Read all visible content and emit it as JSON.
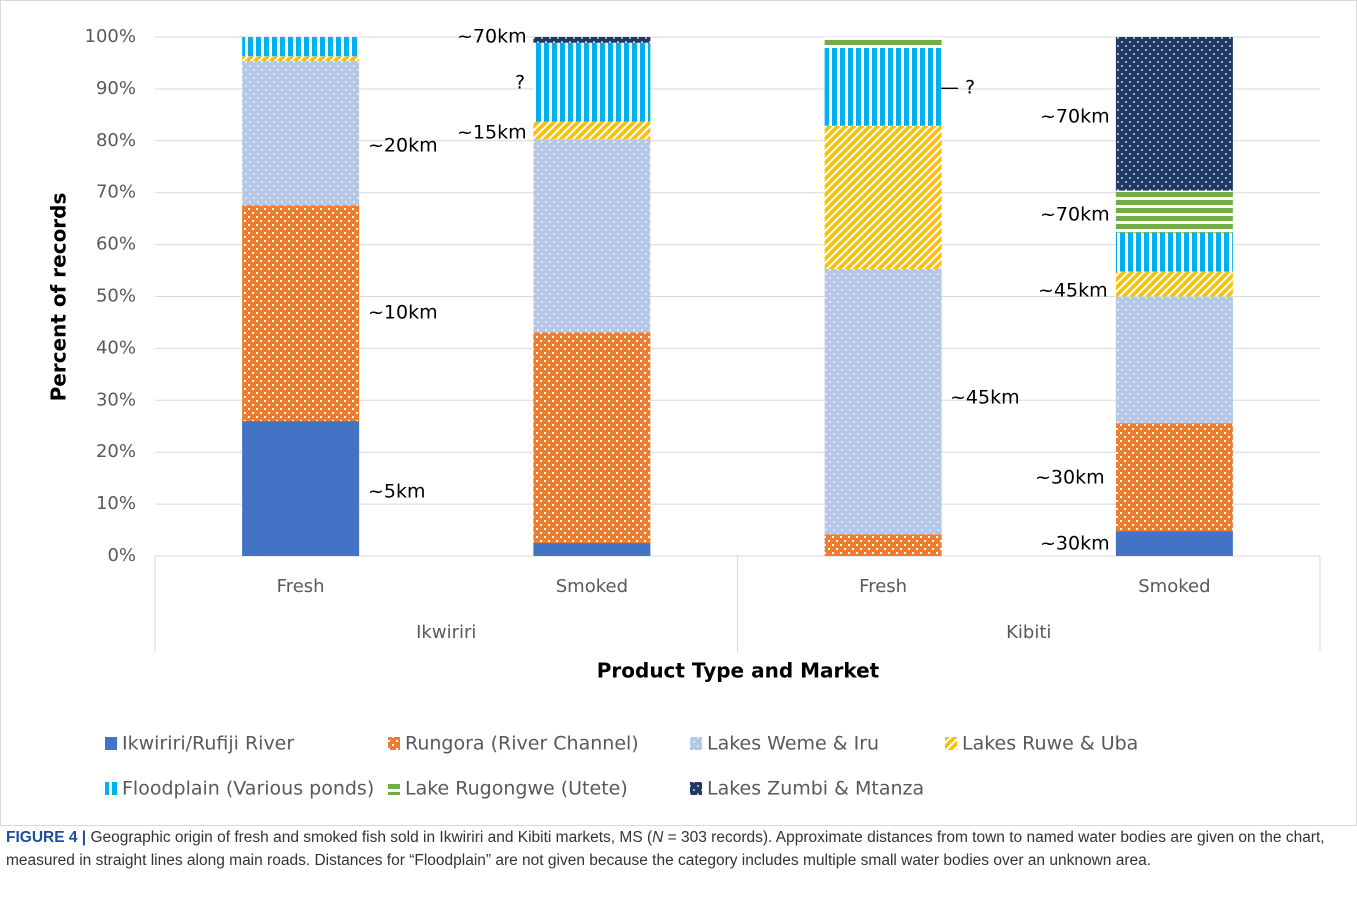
{
  "chart_data": {
    "type": "stacked_bar",
    "categories": [
      "Fresh",
      "Smoked",
      "Fresh",
      "Smoked"
    ],
    "groups": [
      "Ikwiriri",
      "Kibiti"
    ],
    "xlabel": "Product Type and Market",
    "ylabel": "Percent of records",
    "ylim": [
      0,
      100
    ],
    "yticks": [
      {
        "value": 0,
        "label": "0%"
      },
      {
        "value": 10,
        "label": "10%"
      },
      {
        "value": 20,
        "label": "20%"
      },
      {
        "value": 30,
        "label": "30%"
      },
      {
        "value": 40,
        "label": "40%"
      },
      {
        "value": 50,
        "label": "50%"
      },
      {
        "value": 60,
        "label": "60%"
      },
      {
        "value": 70,
        "label": "70%"
      },
      {
        "value": 80,
        "label": "80%"
      },
      {
        "value": 90,
        "label": "90%"
      },
      {
        "value": 100,
        "label": "100%"
      }
    ],
    "grid": true,
    "legend": "bottom",
    "series": [
      {
        "name": "Ikwiriri/Rufiji River",
        "color": "#4472c4",
        "pattern": "solid",
        "values": [
          26,
          2.5,
          0,
          4.8
        ]
      },
      {
        "name": "Rungora (River Channel)",
        "color": "#ed7d31",
        "pattern": "checker",
        "values": [
          41.6,
          40.6,
          4.2,
          20.8
        ]
      },
      {
        "name": "Lakes Weme & Iru",
        "color": "#b4c7e7",
        "pattern": "dots",
        "values": [
          27.8,
          37.2,
          51.1,
          24.4
        ]
      },
      {
        "name": "Lakes Ruwe & Uba",
        "color": "#ffc000",
        "pattern": "diagonal",
        "values": [
          0.9,
          3.4,
          27.6,
          4.8
        ]
      },
      {
        "name": "Floodplain (Various ponds)",
        "color": "#00b0f0",
        "pattern": "vertical",
        "values": [
          3.7,
          15.2,
          15,
          7.5
        ]
      },
      {
        "name": "Lake Rugongwe (Utete)",
        "color": "#70ad47",
        "pattern": "horizontal",
        "values": [
          0,
          0,
          2.1,
          8.1
        ]
      },
      {
        "name": "Lakes Zumbi & Mtanza",
        "color": "#203864",
        "pattern": "dots",
        "values": [
          0,
          1.1,
          0,
          29.6
        ]
      }
    ],
    "annotations": [
      "~5km",
      "~10km",
      "~20km",
      "~70km",
      "?",
      "~15km",
      "— ?",
      "~45km",
      "~70km",
      "~70km",
      "~45km",
      "~30km",
      "~30km"
    ]
  },
  "caption": {
    "label": "FIGURE 4 |",
    "parts": [
      "Geographic origin of fresh and smoked fish sold in Ikwiriri and Kibiti markets, MS (",
      "N",
      " = 303 records). Approximate distances from town to named water bodies are given on the chart, measured in straight lines along main roads. Distances for “Floodplain” are not given because the category includes multiple small water bodies over an unknown area."
    ]
  }
}
